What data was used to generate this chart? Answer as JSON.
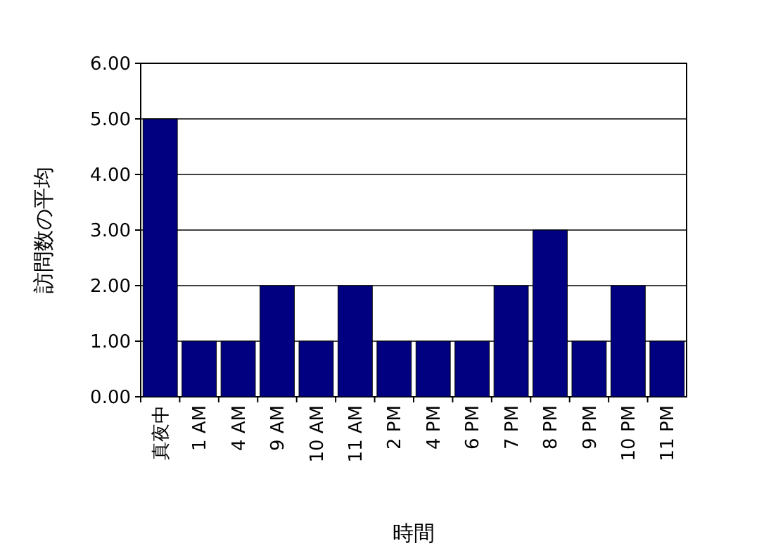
{
  "chart_data": {
    "type": "bar",
    "xlabel": "時間",
    "ylabel": "訪問数の平均",
    "categories": [
      "真夜中",
      "1 AM",
      "4 AM",
      "9 AM",
      "10 AM",
      "11 AM",
      "2 PM",
      "4 PM",
      "6 PM",
      "7 PM",
      "8 PM",
      "9 PM",
      "10 PM",
      "11 PM"
    ],
    "values": [
      5,
      1,
      1,
      2,
      1,
      2,
      1,
      1,
      1,
      2,
      3,
      1,
      2,
      1
    ],
    "color": "#000080",
    "ylim": [
      0,
      6
    ],
    "yticks": [
      {
        "value": 0,
        "label": "0.00"
      },
      {
        "value": 1,
        "label": "1.00"
      },
      {
        "value": 2,
        "label": "2.00"
      },
      {
        "value": 3,
        "label": "3.00"
      },
      {
        "value": 4,
        "label": "4.00"
      },
      {
        "value": 5,
        "label": "5.00"
      },
      {
        "value": 6,
        "label": "6.00"
      }
    ],
    "grid": "y"
  }
}
